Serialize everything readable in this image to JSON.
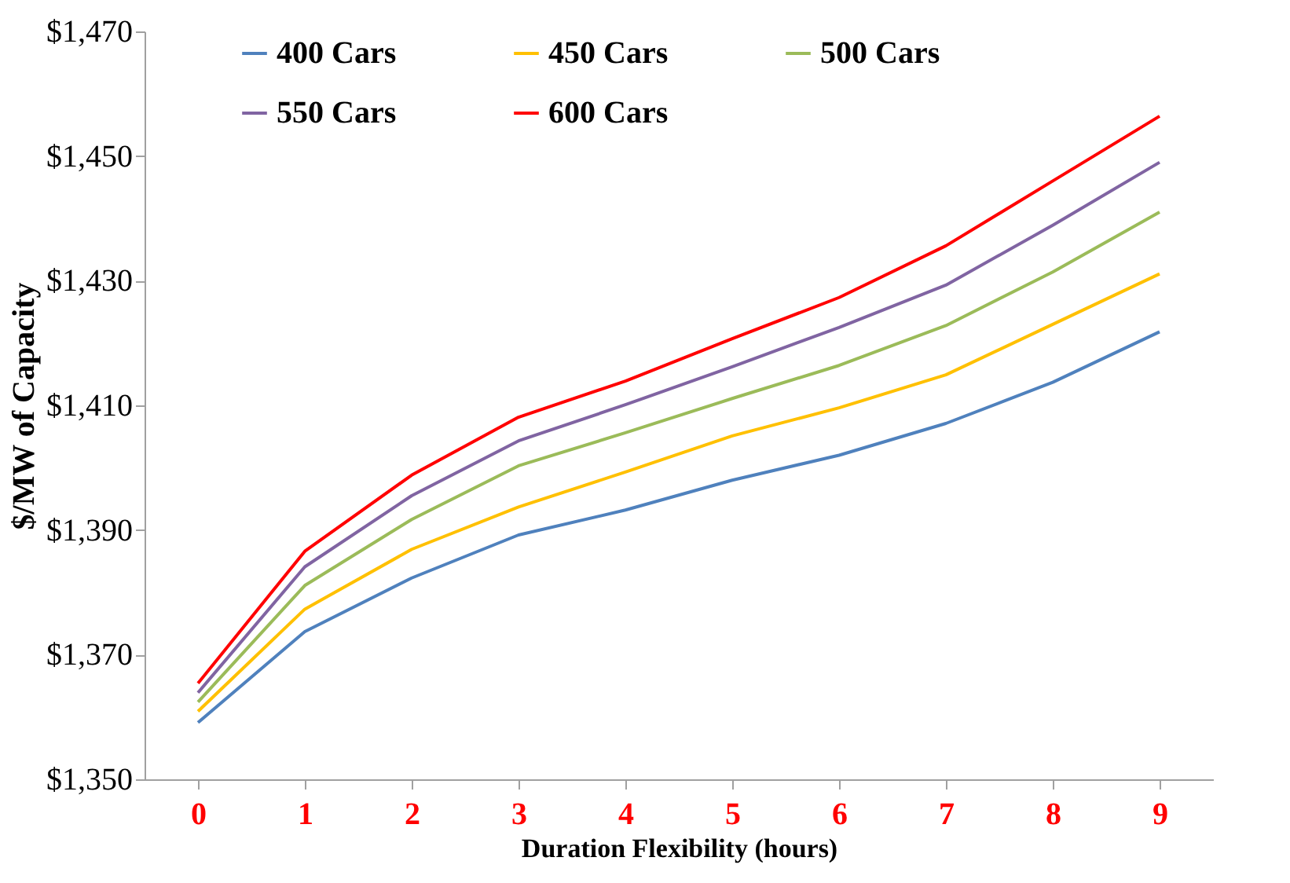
{
  "chart_data": {
    "type": "line",
    "xlabel": "Duration Flexibility (hours)",
    "ylabel": "$/MW of Capacity",
    "categories": [
      "0",
      "1",
      "2",
      "3",
      "4",
      "5",
      "6",
      "7",
      "8",
      "9"
    ],
    "series": [
      {
        "name": "400 Cars",
        "color": "#4f81bd",
        "values": [
          1359.1,
          1373.7,
          1382.3,
          1389.2,
          1393.2,
          1398.0,
          1402.0,
          1407.1,
          1413.7,
          1421.8
        ]
      },
      {
        "name": "450 Cars",
        "color": "#ffc000",
        "values": [
          1360.9,
          1377.3,
          1386.9,
          1393.7,
          1399.3,
          1405.1,
          1409.6,
          1414.9,
          1423.0,
          1431.1
        ]
      },
      {
        "name": "500 Cars",
        "color": "#9bbb59",
        "values": [
          1362.4,
          1381.1,
          1391.7,
          1400.3,
          1405.6,
          1411.1,
          1416.4,
          1422.8,
          1431.4,
          1441.0
        ]
      },
      {
        "name": "550 Cars",
        "color": "#8064a2",
        "values": [
          1363.9,
          1384.1,
          1395.5,
          1404.3,
          1410.1,
          1416.2,
          1422.5,
          1429.3,
          1438.9,
          1449.0
        ]
      },
      {
        "name": "600 Cars",
        "color": "#ff0000",
        "values": [
          1365.4,
          1386.6,
          1398.8,
          1408.1,
          1413.9,
          1420.7,
          1427.3,
          1435.6,
          1446.0,
          1456.4
        ]
      }
    ],
    "ylim": [
      1350,
      1470
    ],
    "yticks": [
      {
        "value": 1350,
        "label": "$1,350"
      },
      {
        "value": 1370,
        "label": "$1,370"
      },
      {
        "value": 1390,
        "label": "$1,390"
      },
      {
        "value": 1410,
        "label": "$1,410"
      },
      {
        "value": 1430,
        "label": "$1,430"
      },
      {
        "value": 1450,
        "label": "$1,450"
      },
      {
        "value": 1470,
        "label": "$1,470"
      }
    ],
    "grid": false,
    "legend": "top",
    "marker": "none",
    "line_style": "solid"
  }
}
